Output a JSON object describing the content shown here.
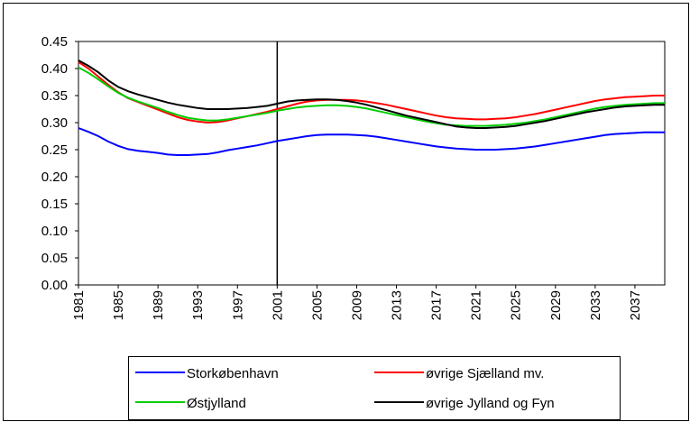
{
  "chart_data": {
    "type": "line",
    "x": [
      1981,
      1982,
      1983,
      1984,
      1985,
      1986,
      1987,
      1988,
      1989,
      1990,
      1991,
      1992,
      1993,
      1994,
      1995,
      1996,
      1997,
      1998,
      1999,
      2000,
      2001,
      2002,
      2003,
      2004,
      2005,
      2006,
      2007,
      2008,
      2009,
      2010,
      2011,
      2012,
      2013,
      2014,
      2015,
      2016,
      2017,
      2018,
      2019,
      2020,
      2021,
      2022,
      2023,
      2024,
      2025,
      2026,
      2027,
      2028,
      2029,
      2030,
      2031,
      2032,
      2033,
      2034,
      2035,
      2036,
      2037,
      2038,
      2039,
      2040
    ],
    "series": [
      {
        "name": "Storkøbenhavn",
        "color": "#0000ff",
        "values": [
          0.29,
          0.283,
          0.275,
          0.265,
          0.257,
          0.251,
          0.248,
          0.246,
          0.244,
          0.241,
          0.24,
          0.24,
          0.241,
          0.242,
          0.245,
          0.249,
          0.252,
          0.255,
          0.258,
          0.262,
          0.266,
          0.269,
          0.272,
          0.275,
          0.277,
          0.278,
          0.278,
          0.278,
          0.277,
          0.276,
          0.274,
          0.271,
          0.268,
          0.265,
          0.262,
          0.259,
          0.256,
          0.254,
          0.252,
          0.251,
          0.25,
          0.25,
          0.25,
          0.251,
          0.252,
          0.254,
          0.256,
          0.259,
          0.262,
          0.265,
          0.268,
          0.271,
          0.274,
          0.277,
          0.279,
          0.28,
          0.281,
          0.282,
          0.282,
          0.282
        ]
      },
      {
        "name": "øvrige Sjælland mv.",
        "color": "#ff0000",
        "values": [
          0.412,
          0.4,
          0.385,
          0.37,
          0.356,
          0.345,
          0.338,
          0.331,
          0.324,
          0.317,
          0.31,
          0.305,
          0.302,
          0.3,
          0.301,
          0.304,
          0.308,
          0.312,
          0.316,
          0.32,
          0.325,
          0.33,
          0.335,
          0.339,
          0.341,
          0.342,
          0.342,
          0.342,
          0.341,
          0.339,
          0.336,
          0.333,
          0.329,
          0.325,
          0.321,
          0.317,
          0.313,
          0.31,
          0.308,
          0.307,
          0.306,
          0.306,
          0.307,
          0.308,
          0.31,
          0.313,
          0.316,
          0.32,
          0.324,
          0.328,
          0.332,
          0.336,
          0.34,
          0.343,
          0.345,
          0.347,
          0.348,
          0.349,
          0.35,
          0.35
        ]
      },
      {
        "name": "Østjylland",
        "color": "#00cc00",
        "values": [
          0.402,
          0.392,
          0.38,
          0.367,
          0.355,
          0.346,
          0.339,
          0.333,
          0.327,
          0.32,
          0.314,
          0.309,
          0.306,
          0.304,
          0.304,
          0.306,
          0.309,
          0.312,
          0.315,
          0.318,
          0.322,
          0.325,
          0.328,
          0.33,
          0.331,
          0.332,
          0.332,
          0.331,
          0.329,
          0.326,
          0.322,
          0.318,
          0.314,
          0.31,
          0.306,
          0.302,
          0.299,
          0.296,
          0.295,
          0.294,
          0.294,
          0.294,
          0.295,
          0.296,
          0.298,
          0.3,
          0.303,
          0.306,
          0.31,
          0.314,
          0.318,
          0.322,
          0.326,
          0.329,
          0.331,
          0.333,
          0.334,
          0.335,
          0.336,
          0.336
        ]
      },
      {
        "name": "øvrige Jylland og Fyn",
        "color": "#000000",
        "values": [
          0.415,
          0.405,
          0.393,
          0.378,
          0.366,
          0.358,
          0.352,
          0.347,
          0.342,
          0.337,
          0.333,
          0.33,
          0.327,
          0.325,
          0.325,
          0.325,
          0.326,
          0.327,
          0.329,
          0.331,
          0.335,
          0.339,
          0.341,
          0.342,
          0.343,
          0.343,
          0.342,
          0.34,
          0.337,
          0.333,
          0.328,
          0.323,
          0.318,
          0.313,
          0.309,
          0.305,
          0.301,
          0.297,
          0.293,
          0.291,
          0.29,
          0.29,
          0.291,
          0.292,
          0.294,
          0.297,
          0.3,
          0.303,
          0.307,
          0.311,
          0.315,
          0.319,
          0.322,
          0.325,
          0.328,
          0.33,
          0.331,
          0.332,
          0.333,
          0.333
        ]
      }
    ],
    "xlim": [
      1981,
      2040
    ],
    "xticks": [
      1981,
      1985,
      1989,
      1993,
      1997,
      2001,
      2005,
      2009,
      2013,
      2017,
      2021,
      2025,
      2029,
      2033,
      2037
    ],
    "ylim": [
      0,
      0.45
    ],
    "yticks": [
      {
        "value": 0,
        "label": "0.00"
      },
      0.05,
      {
        "value": 0.1,
        "label": "0.10"
      },
      0.15,
      {
        "value": 0.2,
        "label": "0.20"
      },
      0.25,
      {
        "value": 0.3,
        "label": "0.30"
      },
      0.35,
      {
        "value": 0.4,
        "label": "0.40"
      },
      0.45
    ],
    "vertical_line_x": 2001,
    "grid": false
  }
}
